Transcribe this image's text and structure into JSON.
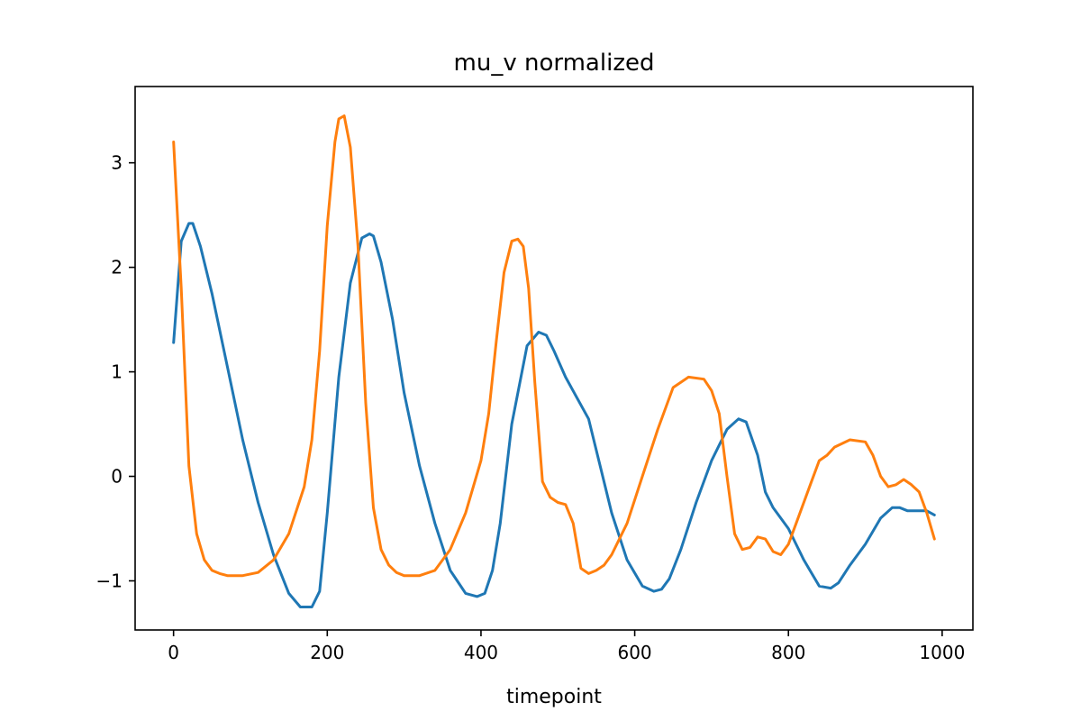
{
  "chart_data": {
    "type": "line",
    "title": "mu_v normalized",
    "xlabel": "timepoint",
    "ylabel": "",
    "xlim": [
      -50,
      1040
    ],
    "ylim": [
      -1.47,
      3.73
    ],
    "xticks": [
      0,
      200,
      400,
      600,
      800,
      1000
    ],
    "yticks": [
      -1,
      0,
      1,
      2,
      3
    ],
    "xtick_labels": [
      "0",
      "200",
      "400",
      "600",
      "800",
      "1000"
    ],
    "ytick_labels": [
      "−1",
      "0",
      "1",
      "2",
      "3"
    ],
    "grid": false,
    "legend": "none",
    "series": [
      {
        "color": "#1f77b4",
        "x": [
          0,
          10,
          20,
          25,
          35,
          50,
          70,
          90,
          110,
          130,
          150,
          165,
          180,
          190,
          200,
          215,
          230,
          245,
          255,
          260,
          270,
          285,
          300,
          320,
          340,
          360,
          380,
          395,
          405,
          415,
          425,
          440,
          460,
          475,
          485,
          495,
          510,
          525,
          540,
          555,
          570,
          590,
          610,
          625,
          635,
          645,
          660,
          680,
          700,
          720,
          735,
          745,
          760,
          770,
          780,
          800,
          820,
          840,
          855,
          865,
          880,
          900,
          920,
          935,
          945,
          955,
          970,
          980,
          990
        ],
        "y": [
          1.28,
          2.25,
          2.42,
          2.42,
          2.2,
          1.75,
          1.05,
          0.35,
          -0.25,
          -0.75,
          -1.12,
          -1.25,
          -1.25,
          -1.1,
          -0.35,
          0.95,
          1.85,
          2.28,
          2.32,
          2.3,
          2.05,
          1.5,
          0.8,
          0.1,
          -0.45,
          -0.9,
          -1.12,
          -1.15,
          -1.12,
          -0.9,
          -0.45,
          0.5,
          1.25,
          1.38,
          1.35,
          1.2,
          0.95,
          0.75,
          0.55,
          0.1,
          -0.35,
          -0.8,
          -1.05,
          -1.1,
          -1.08,
          -0.98,
          -0.7,
          -0.25,
          0.15,
          0.45,
          0.55,
          0.52,
          0.2,
          -0.15,
          -0.3,
          -0.5,
          -0.8,
          -1.05,
          -1.07,
          -1.02,
          -0.85,
          -0.65,
          -0.4,
          -0.3,
          -0.3,
          -0.33,
          -0.33,
          -0.33,
          -0.37
        ]
      },
      {
        "color": "#ff7f0e",
        "x": [
          0,
          10,
          20,
          30,
          40,
          50,
          60,
          70,
          90,
          110,
          130,
          150,
          170,
          180,
          190,
          200,
          210,
          215,
          222,
          230,
          240,
          250,
          260,
          270,
          280,
          290,
          300,
          320,
          340,
          360,
          380,
          400,
          410,
          420,
          430,
          440,
          448,
          455,
          462,
          470,
          480,
          490,
          500,
          510,
          520,
          530,
          540,
          550,
          560,
          570,
          590,
          610,
          630,
          650,
          670,
          690,
          700,
          710,
          720,
          730,
          740,
          750,
          760,
          770,
          780,
          790,
          800,
          810,
          820,
          830,
          840,
          850,
          860,
          880,
          900,
          910,
          920,
          930,
          940,
          950,
          960,
          970,
          980,
          990
        ],
        "y": [
          3.2,
          1.8,
          0.1,
          -0.55,
          -0.8,
          -0.9,
          -0.93,
          -0.95,
          -0.95,
          -0.92,
          -0.8,
          -0.55,
          -0.1,
          0.35,
          1.2,
          2.4,
          3.2,
          3.42,
          3.45,
          3.15,
          2.2,
          0.7,
          -0.3,
          -0.7,
          -0.85,
          -0.92,
          -0.95,
          -0.95,
          -0.9,
          -0.7,
          -0.35,
          0.15,
          0.6,
          1.3,
          1.95,
          2.25,
          2.27,
          2.2,
          1.8,
          0.9,
          -0.05,
          -0.2,
          -0.25,
          -0.27,
          -0.45,
          -0.88,
          -0.93,
          -0.9,
          -0.85,
          -0.75,
          -0.45,
          0.0,
          0.45,
          0.85,
          0.95,
          0.93,
          0.82,
          0.6,
          0.0,
          -0.55,
          -0.7,
          -0.68,
          -0.58,
          -0.6,
          -0.72,
          -0.75,
          -0.65,
          -0.45,
          -0.25,
          -0.05,
          0.15,
          0.2,
          0.28,
          0.35,
          0.33,
          0.2,
          0.0,
          -0.1,
          -0.08,
          -0.03,
          -0.08,
          -0.15,
          -0.35,
          -0.6
        ]
      }
    ]
  }
}
